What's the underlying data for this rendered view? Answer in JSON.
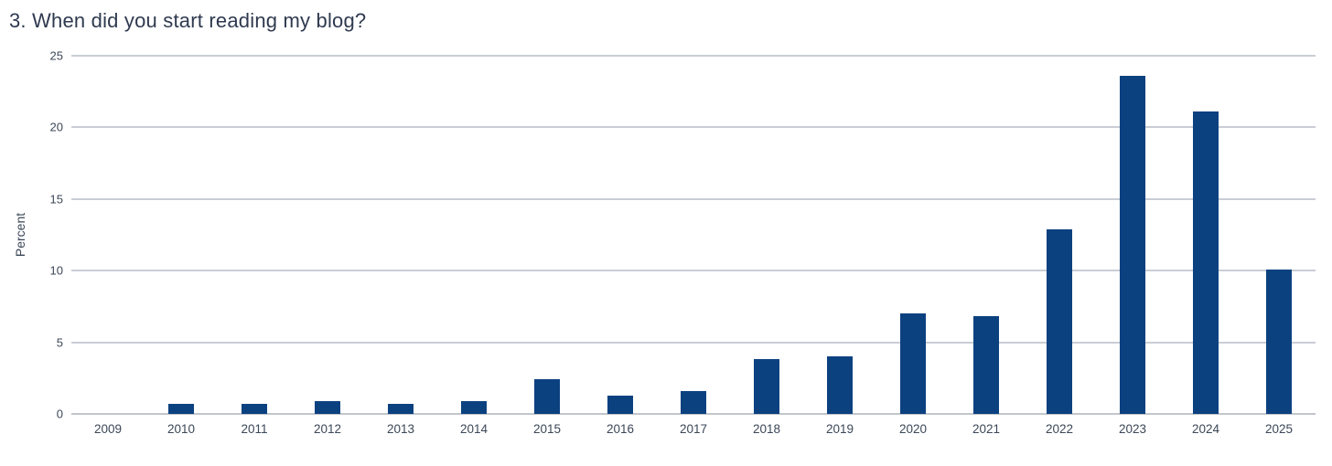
{
  "page": {
    "background_color": "#ffffff"
  },
  "chart_data": {
    "type": "bar",
    "title": "3. When did you start reading my blog?",
    "categories": [
      "2009",
      "2010",
      "2011",
      "2012",
      "2013",
      "2014",
      "2015",
      "2016",
      "2017",
      "2018",
      "2019",
      "2020",
      "2021",
      "2022",
      "2023",
      "2024",
      "2025"
    ],
    "values": [
      0,
      0.7,
      0.7,
      0.9,
      0.7,
      0.9,
      2.4,
      1.3,
      1.6,
      3.8,
      4.0,
      7.0,
      6.8,
      12.9,
      23.6,
      21.1,
      10.1
    ],
    "xlabel": "",
    "ylabel": "Percent",
    "ylim": [
      0,
      25
    ],
    "yticks": [
      0,
      5,
      10,
      15,
      20,
      25
    ],
    "grid": true,
    "legend": false,
    "bar_color": "#0c4180",
    "gridline_color": "#c9cdd4",
    "title_color": "#2f3a4f",
    "axis_text_color": "#3b4757"
  }
}
